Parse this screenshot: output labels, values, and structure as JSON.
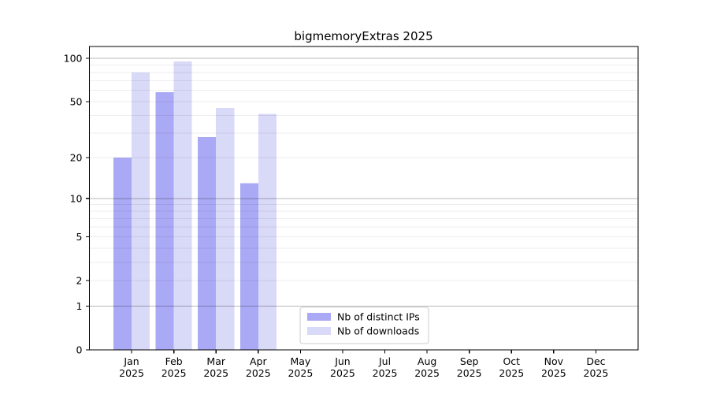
{
  "chart_data": {
    "type": "bar",
    "title": "bigmemoryExtras 2025",
    "year_label": "2025",
    "categories": [
      "Jan",
      "Feb",
      "Mar",
      "Apr",
      "May",
      "Jun",
      "Jul",
      "Aug",
      "Sep",
      "Oct",
      "Nov",
      "Dec"
    ],
    "series": [
      {
        "name": "Nb of distinct IPs",
        "color": "#a9a9f5",
        "values": [
          20,
          58,
          28,
          13,
          0,
          0,
          0,
          0,
          0,
          0,
          0,
          0
        ]
      },
      {
        "name": "Nb of downloads",
        "color": "#d9d9f8",
        "values": [
          80,
          95,
          45,
          41,
          0,
          0,
          0,
          0,
          0,
          0,
          0,
          0
        ]
      }
    ],
    "yscale": "log1p",
    "ylim": [
      0,
      121
    ],
    "yticks": [
      0,
      1,
      2,
      5,
      10,
      20,
      50,
      100
    ],
    "grid": {
      "minor": [
        2,
        3,
        4,
        5,
        6,
        7,
        8,
        9,
        20,
        30,
        40,
        50,
        60,
        70,
        80,
        90
      ],
      "major": [
        1,
        10,
        100
      ],
      "minor_color": "rgba(0,0,0,0.07)",
      "major_color": "rgba(0,0,0,0.28)"
    },
    "legend_position": "bottom-center-inside",
    "xlabel": "",
    "ylabel": ""
  },
  "colors": {
    "background": "#ffffff",
    "axis": "#000000",
    "legend_border": "#cccccc",
    "legend_background": "#ffffff"
  }
}
